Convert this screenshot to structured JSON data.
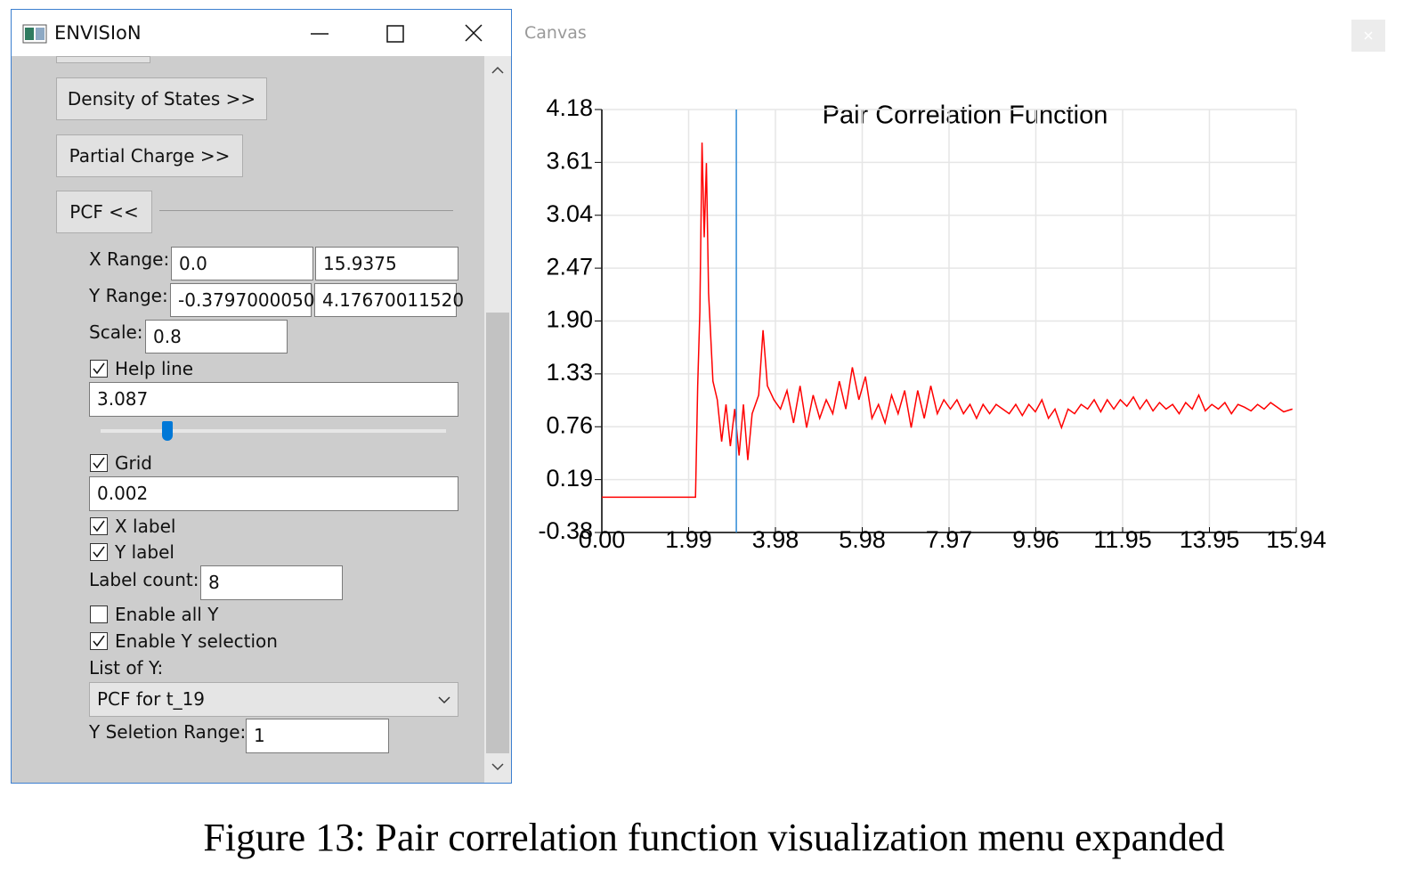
{
  "window": {
    "title": "ENVISIoN"
  },
  "menu": {
    "buttons": [
      "Density of States >>",
      "Partial Charge >>",
      "PCF <<"
    ]
  },
  "pcf_panel": {
    "x_range": {
      "label": "X Range:",
      "min": "0.0",
      "max": "15.9375"
    },
    "y_range": {
      "label": "Y Range:",
      "min": "-0.3797000050",
      "max": "4.17670011520"
    },
    "scale": {
      "label": "Scale:",
      "value": "0.8"
    },
    "help_line": {
      "label": "Help line",
      "checked": true
    },
    "grid": {
      "label": "Grid",
      "checked": true,
      "value": "0.002"
    },
    "x_label": {
      "label": "X label",
      "checked": true
    },
    "y_label": {
      "label": "Y label",
      "checked": true
    },
    "label_count": {
      "label": "Label count:",
      "value": "8"
    },
    "enable_all_y": {
      "label": "Enable all Y",
      "checked": false
    },
    "enable_y_selection": {
      "label": "Enable Y selection",
      "checked": true
    },
    "list_of_y": {
      "label": "List of Y:",
      "selected": "PCF for t_19"
    },
    "y_selection_range": {
      "label": "Y Seletion Range:",
      "value": "1"
    }
  },
  "canvas": {
    "title": "Canvas"
  },
  "chart_data": {
    "type": "line",
    "title": "Pair Correlation Function",
    "xlim": [
      0,
      15.9375
    ],
    "ylim": [
      -0.3797,
      4.1767
    ],
    "xticks": [
      {
        "value": 0,
        "label": "0.00"
      },
      {
        "value": 1.9922,
        "label": "1.99"
      },
      {
        "value": 3.9844,
        "label": "3.98"
      },
      {
        "value": 5.9766,
        "label": "5.98"
      },
      {
        "value": 7.9688,
        "label": "7.97"
      },
      {
        "value": 9.9609,
        "label": "9.96"
      },
      {
        "value": 11.9531,
        "label": "11.95"
      },
      {
        "value": 13.9453,
        "label": "13.95"
      },
      {
        "value": 15.9375,
        "label": "15.94"
      }
    ],
    "yticks": [
      {
        "value": -0.3797,
        "label": "-0.38"
      },
      {
        "value": 0.18985,
        "label": "0.19"
      },
      {
        "value": 0.7594,
        "label": "0.76"
      },
      {
        "value": 1.32895,
        "label": "1.33"
      },
      {
        "value": 1.8985,
        "label": "1.90"
      },
      {
        "value": 2.46805,
        "label": "2.47"
      },
      {
        "value": 3.0376,
        "label": "3.04"
      },
      {
        "value": 3.60715,
        "label": "3.61"
      },
      {
        "value": 4.1767,
        "label": "4.18"
      }
    ],
    "grid": true,
    "help_line": 3.087,
    "help_line_color": "#2e8bd6",
    "x": [
      0,
      2.15,
      2.2,
      2.25,
      2.3,
      2.35,
      2.4,
      2.45,
      2.55,
      2.65,
      2.75,
      2.85,
      2.95,
      3.05,
      3.15,
      3.25,
      3.35,
      3.45,
      3.6,
      3.7,
      3.8,
      3.95,
      4.1,
      4.25,
      4.4,
      4.55,
      4.7,
      4.85,
      5.0,
      5.15,
      5.3,
      5.45,
      5.6,
      5.75,
      5.9,
      6.05,
      6.2,
      6.35,
      6.5,
      6.65,
      6.8,
      6.95,
      7.1,
      7.25,
      7.4,
      7.55,
      7.7,
      7.85,
      8.0,
      8.15,
      8.3,
      8.45,
      8.6,
      8.75,
      8.9,
      9.05,
      9.2,
      9.35,
      9.5,
      9.65,
      9.8,
      9.95,
      10.1,
      10.25,
      10.4,
      10.55,
      10.7,
      10.85,
      11.0,
      11.15,
      11.3,
      11.45,
      11.6,
      11.75,
      11.9,
      12.05,
      12.2,
      12.35,
      12.5,
      12.65,
      12.8,
      12.95,
      13.1,
      13.25,
      13.4,
      13.55,
      13.7,
      13.85,
      14.0,
      14.15,
      14.3,
      14.45,
      14.6,
      14.75,
      14.9,
      15.05,
      15.2,
      15.35,
      15.5,
      15.65,
      15.85
    ],
    "series": [
      {
        "color": "#ff0000",
        "values": [
          0,
          0,
          1.2,
          2.0,
          3.82,
          2.8,
          3.6,
          2.2,
          1.25,
          1.05,
          0.6,
          1.0,
          0.55,
          0.95,
          0.45,
          1.0,
          0.4,
          0.9,
          1.1,
          1.8,
          1.2,
          1.05,
          0.95,
          1.15,
          0.8,
          1.2,
          0.75,
          1.1,
          0.85,
          1.05,
          0.9,
          1.25,
          0.95,
          1.4,
          1.05,
          1.3,
          0.85,
          1.0,
          0.8,
          1.1,
          0.9,
          1.15,
          0.75,
          1.15,
          0.85,
          1.2,
          0.9,
          1.05,
          0.95,
          1.05,
          0.9,
          1.0,
          0.85,
          1.0,
          0.9,
          1.0,
          0.95,
          0.9,
          1.0,
          0.88,
          1.0,
          0.92,
          1.05,
          0.85,
          0.95,
          0.75,
          0.95,
          0.9,
          1.0,
          0.95,
          1.05,
          0.92,
          1.05,
          0.95,
          1.05,
          0.98,
          1.08,
          0.95,
          1.05,
          0.93,
          1.02,
          0.95,
          1.0,
          0.9,
          1.02,
          0.95,
          1.1,
          0.93,
          1.0,
          0.95,
          1.02,
          0.9,
          1.0,
          0.97,
          0.93,
          1.0,
          0.95,
          1.02,
          0.97,
          0.92,
          0.95
        ]
      }
    ]
  },
  "caption": "Figure 13: Pair correlation function visualization menu expanded"
}
